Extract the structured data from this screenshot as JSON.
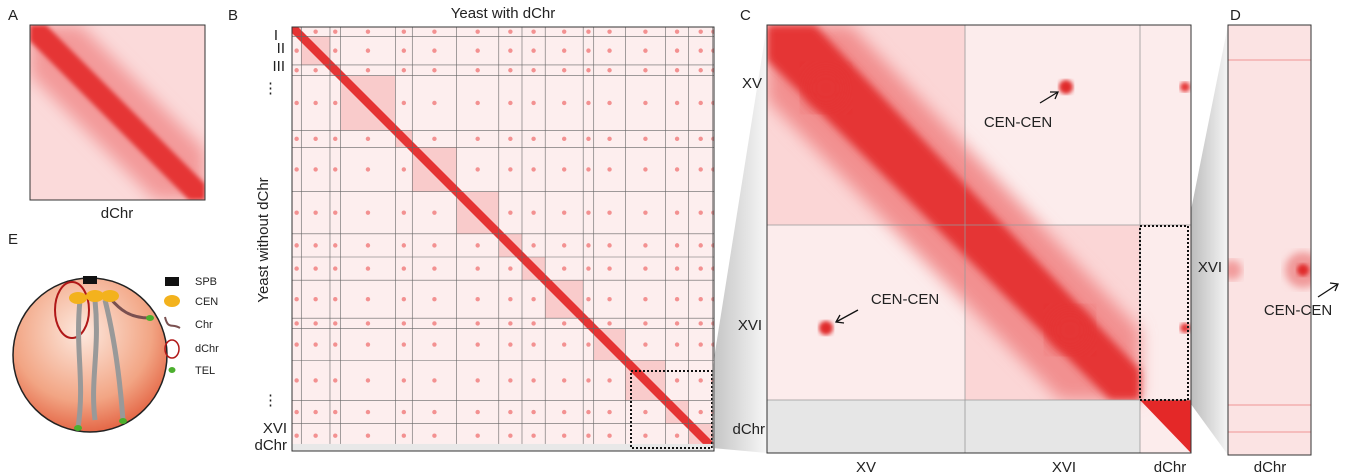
{
  "panels": {
    "A": {
      "label": "A",
      "x_label": "dChr"
    },
    "B": {
      "label": "B",
      "title": "Yeast with dChr",
      "y_label": "Yeast without dChr",
      "row_labels": [
        "I",
        "II",
        "III",
        "⋮",
        "⋮",
        "XVI",
        "dChr"
      ]
    },
    "C": {
      "label": "C",
      "row_labels": [
        "XV",
        "XVI",
        "dChr"
      ],
      "col_labels": [
        "XV",
        "XVI",
        "dChr"
      ],
      "annotations": [
        "CEN-CEN",
        "CEN-CEN"
      ]
    },
    "D": {
      "label": "D",
      "row_label": "XVI",
      "x_label": "dChr",
      "annotation": "CEN-CEN"
    },
    "E": {
      "label": "E",
      "legend": [
        "SPB",
        "CEN",
        "Chr",
        "dChr",
        "TEL"
      ]
    }
  }
}
